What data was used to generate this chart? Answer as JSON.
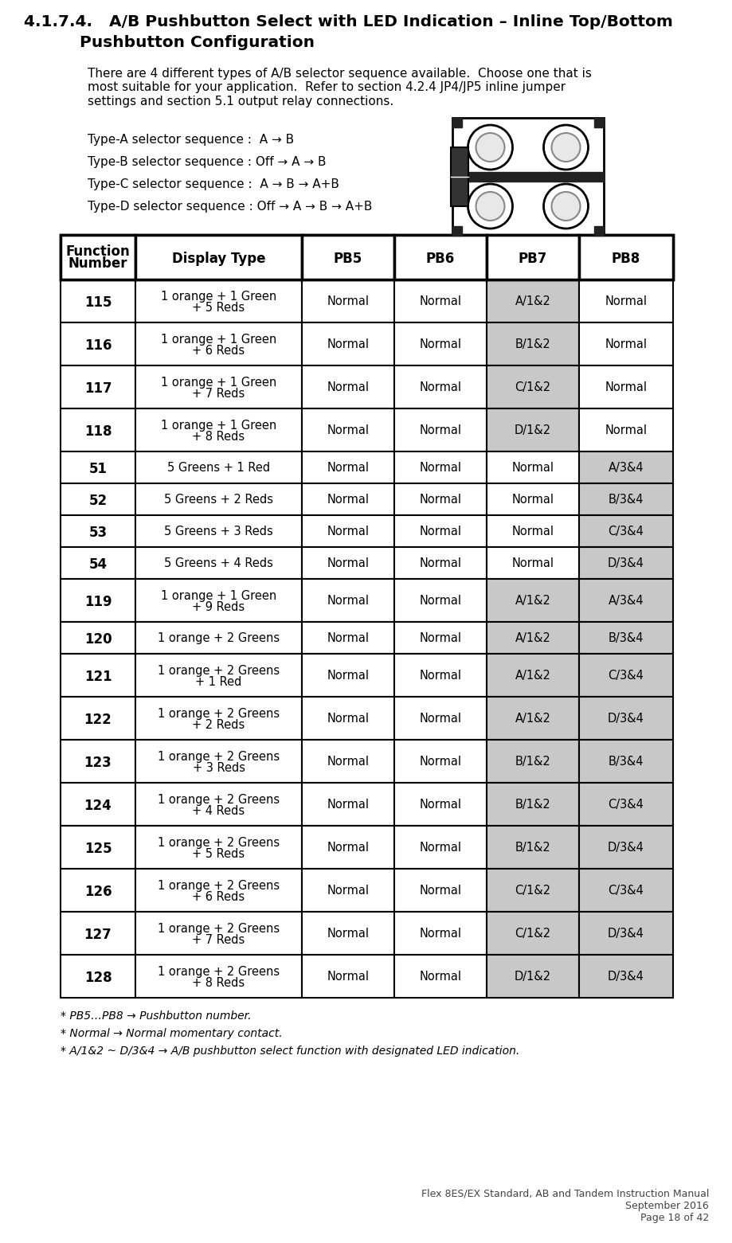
{
  "title_line1": "4.1.7.4.   A/B Pushbutton Select with LED Indication – Inline Top/Bottom",
  "title_line2": "Pushbutton Configuration",
  "intro_text": "There are 4 different types of A/B selector sequence available.  Choose one that is\nmost suitable for your application.  Refer to section 4.2.4 JP4/JP5 inline jumper\nsettings and section 5.1 output relay connections.",
  "type_a": "Type-A selector sequence :  A → B",
  "type_b": "Type-B selector sequence : Off → A → B",
  "type_c": "Type-C selector sequence :  A → B → A+B",
  "type_d": "Type-D selector sequence : Off → A → B → A+B",
  "col_headers": [
    "Function\nNumber",
    "Display Type",
    "PB5",
    "PB6",
    "PB7",
    "PB8"
  ],
  "rows": [
    [
      "115",
      "1 orange + 1 Green\n+ 5 Reds",
      "Normal",
      "Normal",
      "A/1&2",
      "Normal"
    ],
    [
      "116",
      "1 orange + 1 Green\n+ 6 Reds",
      "Normal",
      "Normal",
      "B/1&2",
      "Normal"
    ],
    [
      "117",
      "1 orange + 1 Green\n+ 7 Reds",
      "Normal",
      "Normal",
      "C/1&2",
      "Normal"
    ],
    [
      "118",
      "1 orange + 1 Green\n+ 8 Reds",
      "Normal",
      "Normal",
      "D/1&2",
      "Normal"
    ],
    [
      "51",
      "5 Greens + 1 Red",
      "Normal",
      "Normal",
      "Normal",
      "A/3&4"
    ],
    [
      "52",
      "5 Greens + 2 Reds",
      "Normal",
      "Normal",
      "Normal",
      "B/3&4"
    ],
    [
      "53",
      "5 Greens + 3 Reds",
      "Normal",
      "Normal",
      "Normal",
      "C/3&4"
    ],
    [
      "54",
      "5 Greens + 4 Reds",
      "Normal",
      "Normal",
      "Normal",
      "D/3&4"
    ],
    [
      "119",
      "1 orange + 1 Green\n+ 9 Reds",
      "Normal",
      "Normal",
      "A/1&2",
      "A/3&4"
    ],
    [
      "120",
      "1 orange + 2 Greens",
      "Normal",
      "Normal",
      "A/1&2",
      "B/3&4"
    ],
    [
      "121",
      "1 orange + 2 Greens\n+ 1 Red",
      "Normal",
      "Normal",
      "A/1&2",
      "C/3&4"
    ],
    [
      "122",
      "1 orange + 2 Greens\n+ 2 Reds",
      "Normal",
      "Normal",
      "A/1&2",
      "D/3&4"
    ],
    [
      "123",
      "1 orange + 2 Greens\n+ 3 Reds",
      "Normal",
      "Normal",
      "B/1&2",
      "B/3&4"
    ],
    [
      "124",
      "1 orange + 2 Greens\n+ 4 Reds",
      "Normal",
      "Normal",
      "B/1&2",
      "C/3&4"
    ],
    [
      "125",
      "1 orange + 2 Greens\n+ 5 Reds",
      "Normal",
      "Normal",
      "B/1&2",
      "D/3&4"
    ],
    [
      "126",
      "1 orange + 2 Greens\n+ 6 Reds",
      "Normal",
      "Normal",
      "C/1&2",
      "C/3&4"
    ],
    [
      "127",
      "1 orange + 2 Greens\n+ 7 Reds",
      "Normal",
      "Normal",
      "C/1&2",
      "D/3&4"
    ],
    [
      "128",
      "1 orange + 2 Greens\n+ 8 Reds",
      "Normal",
      "Normal",
      "D/1&2",
      "D/3&4"
    ]
  ],
  "footer_line1": "* PB5…PB8 → Pushbutton number.",
  "footer_line2": "* Normal → Normal momentary contact.",
  "footer_line3": "* A/1&2 ~ D/3&4 → A/B pushbutton select function with designated LED indication.",
  "page_footer": "Flex 8ES/EX Standard, AB and Tandem Instruction Manual\nSeptember 2016\nPage 18 of 42",
  "shaded_cell_bg": "#c8c8c8",
  "table_lw_outer": 2.5,
  "table_lw_inner": 1.5,
  "title_fs": 14.5,
  "body_fs": 11.0,
  "table_hdr_fs": 12.0,
  "table_fn_fs": 12.0,
  "table_cell_fs": 10.5,
  "footer_fs": 10.0,
  "page_footer_fs": 9.0
}
